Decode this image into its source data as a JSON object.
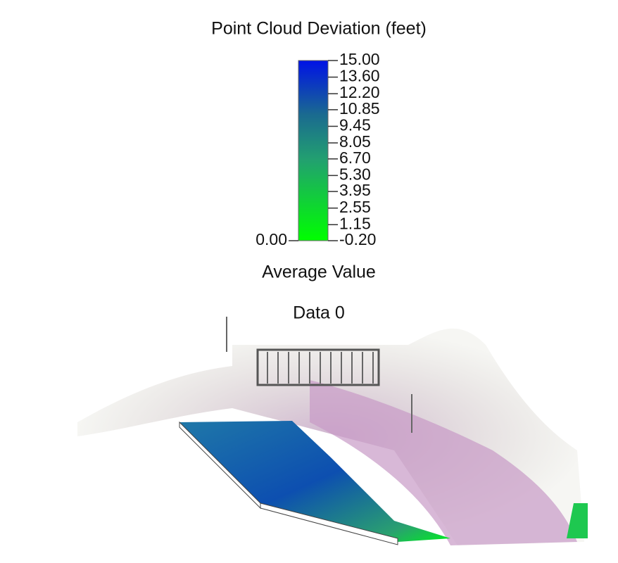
{
  "colorbar": {
    "title": "Point Cloud Deviation (feet)",
    "lim": [
      -0.2,
      15
    ],
    "ticks": [
      {
        "value": 15,
        "label": "15.00"
      },
      {
        "value": 13.6,
        "label": "13.60"
      },
      {
        "value": 12.2,
        "label": "12.20"
      },
      {
        "value": 10.85,
        "label": "10.85"
      },
      {
        "value": 9.45,
        "label": "9.45"
      },
      {
        "value": 8.05,
        "label": "8.05"
      },
      {
        "value": 6.7,
        "label": "6.70"
      },
      {
        "value": 5.3,
        "label": "5.30"
      },
      {
        "value": 3.95,
        "label": "3.95"
      },
      {
        "value": 2.55,
        "label": "2.55"
      },
      {
        "value": 1.15,
        "label": "1.15"
      },
      {
        "value": -0.2,
        "label": "-0.20"
      }
    ],
    "left_label": "0.00",
    "caption": "Average Value"
  },
  "dataset_label": "Data 0"
}
